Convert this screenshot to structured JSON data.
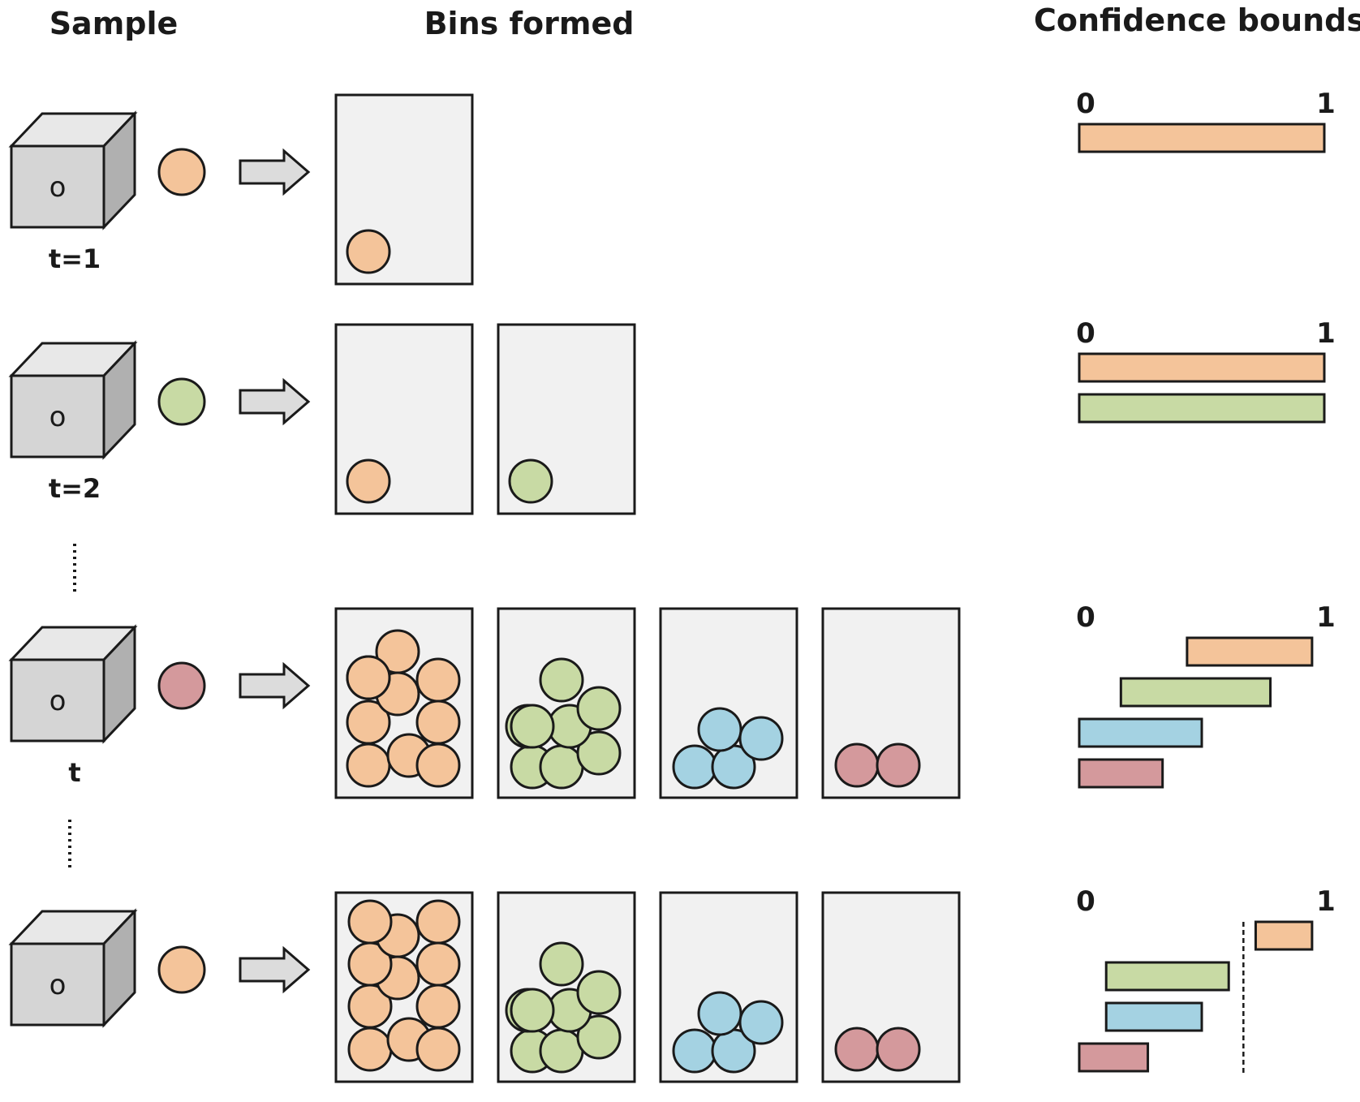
{
  "headers": {
    "sample": "Sample",
    "bins": "Bins formed",
    "confidence": "Confidence bounds"
  },
  "box_letter": "o",
  "axis": {
    "min": "0",
    "max": "1"
  },
  "ellipsis": "⋮",
  "colors": {
    "orange": "#f4c49a",
    "green": "#c8daa4",
    "blue": "#a4d2e2",
    "red": "#d4999c",
    "bin_fill": "#f1f1f1",
    "box_front": "#d5d5d5",
    "box_top": "#e8e8e8",
    "box_side": "#b0b0b0",
    "arrow": "#dcdcdc",
    "stroke": "#1a1a1a"
  },
  "rows": [
    {
      "time_label": "t=1",
      "sample_color": "orange",
      "bins": [
        {
          "color": "orange",
          "count": 1
        }
      ],
      "bounds": [
        {
          "color": "orange",
          "lower": 0.0,
          "upper": 1.0
        }
      ],
      "threshold": null
    },
    {
      "time_label": "t=2",
      "sample_color": "green",
      "bins": [
        {
          "color": "orange",
          "count": 1
        },
        {
          "color": "green",
          "count": 1
        }
      ],
      "bounds": [
        {
          "color": "orange",
          "lower": 0.0,
          "upper": 1.0
        },
        {
          "color": "green",
          "lower": 0.0,
          "upper": 1.0
        }
      ],
      "threshold": null
    },
    {
      "time_label": "t",
      "sample_color": "red",
      "bins": [
        {
          "color": "orange",
          "count": 10
        },
        {
          "color": "green",
          "count": 8
        },
        {
          "color": "blue",
          "count": 4
        },
        {
          "color": "red",
          "count": 2
        }
      ],
      "bounds": [
        {
          "color": "orange",
          "lower": 0.44,
          "upper": 0.95
        },
        {
          "color": "green",
          "lower": 0.17,
          "upper": 0.78
        },
        {
          "color": "blue",
          "lower": 0.0,
          "upper": 0.5
        },
        {
          "color": "red",
          "lower": 0.0,
          "upper": 0.34
        }
      ],
      "threshold": null
    },
    {
      "time_label": "",
      "sample_color": "orange",
      "bins": [
        {
          "color": "orange",
          "count": 11
        },
        {
          "color": "green",
          "count": 8
        },
        {
          "color": "blue",
          "count": 4
        },
        {
          "color": "red",
          "count": 2
        }
      ],
      "bounds": [
        {
          "color": "orange",
          "lower": 0.72,
          "upper": 0.95
        },
        {
          "color": "green",
          "lower": 0.11,
          "upper": 0.61
        },
        {
          "color": "blue",
          "lower": 0.11,
          "upper": 0.5
        },
        {
          "color": "red",
          "lower": 0.0,
          "upper": 0.28
        }
      ],
      "threshold": 0.67
    }
  ]
}
